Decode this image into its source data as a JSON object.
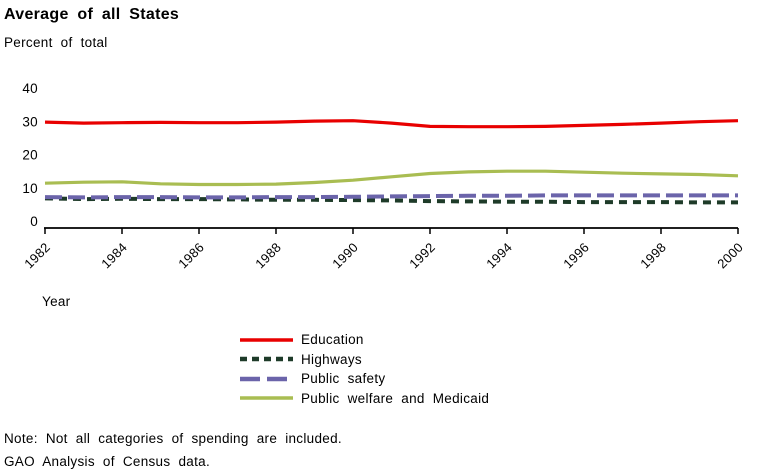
{
  "page": {
    "title": "Average of all States",
    "subtitle": "Percent of total",
    "xaxis_title": "Year",
    "note_line1": "Note: Not all categories of spending are included.",
    "note_line2": "GAO Analysis of Census data."
  },
  "chart_data": {
    "type": "line",
    "title": "Average of all States",
    "ylabel": "Percent of total",
    "xlabel": "Year",
    "ylim": [
      0,
      40
    ],
    "yticks": [
      0,
      10,
      20,
      30,
      40
    ],
    "xticks": [
      1982,
      1984,
      1986,
      1988,
      1990,
      1992,
      1994,
      1996,
      1998,
      2000
    ],
    "x": [
      1982,
      1983,
      1984,
      1985,
      1986,
      1987,
      1988,
      1989,
      1990,
      1991,
      1992,
      1993,
      1994,
      1995,
      1996,
      1997,
      1998,
      1999,
      2000
    ],
    "grid": false,
    "legend_position": "bottom-center",
    "axis_color": "#000000",
    "series": [
      {
        "name": "Education",
        "color": "#e80000",
        "style": "solid",
        "values": [
          29.8,
          29.5,
          29.6,
          29.7,
          29.6,
          29.6,
          29.8,
          30.1,
          30.2,
          29.5,
          28.5,
          28.4,
          28.4,
          28.5,
          28.8,
          29.1,
          29.5,
          29.9,
          30.2
        ]
      },
      {
        "name": "Highways",
        "color": "#1e3b29",
        "style": "dashed-short",
        "values": [
          6.8,
          6.6,
          6.7,
          6.6,
          6.6,
          6.5,
          6.4,
          6.4,
          6.3,
          6.2,
          6.0,
          5.9,
          5.8,
          5.8,
          5.7,
          5.7,
          5.7,
          5.6,
          5.6
        ]
      },
      {
        "name": "Public safety",
        "color": "#6b64aa",
        "style": "dashed-long",
        "values": [
          7.2,
          7.1,
          7.2,
          7.2,
          7.1,
          7.1,
          7.2,
          7.2,
          7.3,
          7.4,
          7.5,
          7.6,
          7.6,
          7.7,
          7.7,
          7.7,
          7.7,
          7.7,
          7.7
        ]
      },
      {
        "name": "Public welfare and Medicaid",
        "color": "#a9bd52",
        "style": "solid",
        "values": [
          11.4,
          11.7,
          11.8,
          11.2,
          11.0,
          11.0,
          11.1,
          11.6,
          12.3,
          13.3,
          14.3,
          14.8,
          15.0,
          15.0,
          14.7,
          14.4,
          14.2,
          14.0,
          13.6
        ]
      }
    ]
  }
}
